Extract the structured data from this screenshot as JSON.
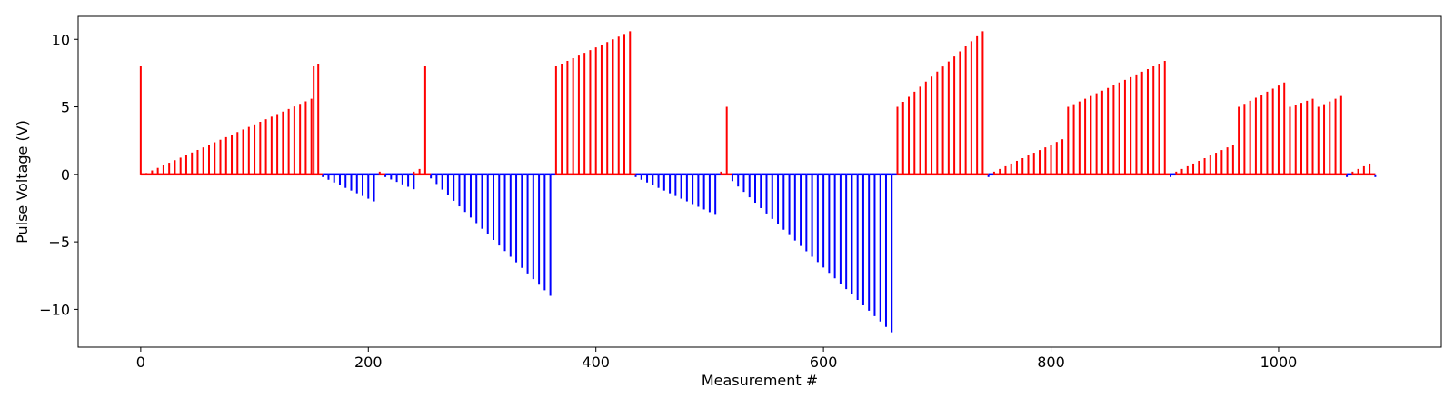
{
  "chart_data": {
    "type": "bar",
    "xlabel": "Measurement #",
    "ylabel": "Pulse Voltage (V)",
    "xlim": [
      -55,
      1143
    ],
    "ylim": [
      -12.8,
      11.7
    ],
    "xticks": [
      0,
      200,
      400,
      600,
      800,
      1000
    ],
    "xtick_labels": [
      "0",
      "200",
      "400",
      "600",
      "800",
      "1000"
    ],
    "yticks": [
      10,
      5,
      0,
      -5,
      -10
    ],
    "ytick_labels": [
      "10",
      "5",
      "0",
      "−5",
      "−10"
    ],
    "grid": false,
    "positive_color": "#ff0000",
    "negative_color": "#0000ff",
    "segments": [
      {
        "kind": "linear",
        "x_start": 5,
        "step": 5,
        "v_start": 0.1,
        "v_end": 5.6,
        "count": 30,
        "color": "#ff0000"
      },
      {
        "kind": "linear",
        "x_start": 160,
        "step": 5,
        "v_start": -0.2,
        "v_end": -2.0,
        "count": 10,
        "color": "#0000ff"
      },
      {
        "kind": "linear",
        "x_start": 210,
        "step": 5,
        "v_start": 0.2,
        "v_end": 0.2,
        "count": 1,
        "color": "#ff0000"
      },
      {
        "kind": "linear",
        "x_start": 215,
        "step": 5,
        "v_start": -0.2,
        "v_end": -1.1,
        "count": 6,
        "color": "#0000ff"
      },
      {
        "kind": "linear",
        "x_start": 240,
        "step": 5,
        "v_start": 0.2,
        "v_end": 0.4,
        "count": 2,
        "color": "#ff0000"
      },
      {
        "kind": "linear",
        "x_start": 255,
        "step": 5,
        "v_start": -0.3,
        "v_end": -9.0,
        "count": 22,
        "color": "#0000ff"
      },
      {
        "kind": "linear",
        "x_start": 365,
        "step": 5,
        "v_start": 8.0,
        "v_end": 10.6,
        "count": 14,
        "color": "#ff0000"
      },
      {
        "kind": "linear",
        "x_start": 435,
        "step": 5,
        "v_start": -0.2,
        "v_end": -3.0,
        "count": 15,
        "color": "#0000ff"
      },
      {
        "kind": "linear",
        "x_start": 510,
        "step": 5,
        "v_start": 0.2,
        "v_end": 0.2,
        "count": 1,
        "color": "#ff0000"
      },
      {
        "kind": "linear",
        "x_start": 520,
        "step": 5,
        "v_start": -0.5,
        "v_end": -11.7,
        "count": 29,
        "color": "#0000ff"
      },
      {
        "kind": "linear",
        "x_start": 665,
        "step": 5,
        "v_start": 5.0,
        "v_end": 10.6,
        "count": 16,
        "color": "#ff0000"
      },
      {
        "kind": "linear",
        "x_start": 745,
        "step": 5,
        "v_start": -0.2,
        "v_end": -0.2,
        "count": 1,
        "color": "#0000ff"
      },
      {
        "kind": "linear",
        "x_start": 750,
        "step": 5,
        "v_start": 0.2,
        "v_end": 2.6,
        "count": 13,
        "color": "#ff0000"
      },
      {
        "kind": "linear",
        "x_start": 815,
        "step": 5,
        "v_start": 5.0,
        "v_end": 8.4,
        "count": 18,
        "color": "#ff0000"
      },
      {
        "kind": "linear",
        "x_start": 905,
        "step": 5,
        "v_start": -0.2,
        "v_end": -0.2,
        "count": 1,
        "color": "#0000ff"
      },
      {
        "kind": "linear",
        "x_start": 910,
        "step": 5,
        "v_start": 0.2,
        "v_end": 2.2,
        "count": 11,
        "color": "#ff0000"
      },
      {
        "kind": "linear",
        "x_start": 965,
        "step": 5,
        "v_start": 5.0,
        "v_end": 6.8,
        "count": 9,
        "color": "#ff0000"
      },
      {
        "kind": "linear",
        "x_start": 1010,
        "step": 5,
        "v_start": 5.0,
        "v_end": 5.6,
        "count": 5,
        "color": "#ff0000"
      },
      {
        "kind": "linear",
        "x_start": 1035,
        "step": 5,
        "v_start": 5.0,
        "v_end": 5.8,
        "count": 5,
        "color": "#ff0000"
      },
      {
        "kind": "linear",
        "x_start": 1060,
        "step": 5,
        "v_start": -0.2,
        "v_end": -0.2,
        "count": 1,
        "color": "#0000ff"
      },
      {
        "kind": "linear",
        "x_start": 1065,
        "step": 5,
        "v_start": 0.2,
        "v_end": 0.8,
        "count": 4,
        "color": "#ff0000"
      },
      {
        "kind": "linear",
        "x_start": 1085,
        "step": 5,
        "v_start": -0.2,
        "v_end": -0.2,
        "count": 1,
        "color": "#0000ff"
      }
    ],
    "extra_points": [
      {
        "x": 0,
        "y": 8.0,
        "color": "#ff0000"
      },
      {
        "x": 152,
        "y": 8.0,
        "color": "#ff0000"
      },
      {
        "x": 156,
        "y": 8.2,
        "color": "#ff0000"
      },
      {
        "x": 250,
        "y": 8.0,
        "color": "#ff0000"
      },
      {
        "x": 515,
        "y": 5.0,
        "color": "#ff0000"
      }
    ]
  }
}
